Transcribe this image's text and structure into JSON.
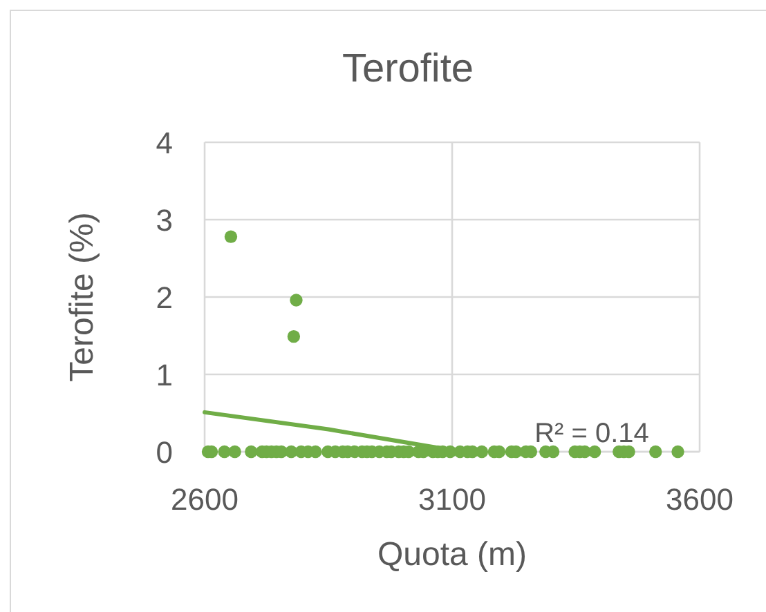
{
  "chart_data": {
    "type": "scatter",
    "title": "Terofite",
    "xlabel": "Quota (m)",
    "ylabel": "Terofite (%)",
    "xlim": [
      2600,
      3600
    ],
    "xticks": [
      2600,
      3100,
      3600
    ],
    "ylim": [
      0,
      4
    ],
    "yticks": [
      0,
      1,
      2,
      3,
      4
    ],
    "grid": true,
    "annotations": [
      "R² = 0.14"
    ],
    "series": [
      {
        "type": "line",
        "color": "#70ad47",
        "marker": "none",
        "line_style": "solid",
        "x": [
          2600,
          2850,
          3100
        ],
        "values": [
          0.51,
          0.29,
          0.02
        ]
      },
      {
        "color": "#70ad47",
        "marker": "circle",
        "x": [
          2607,
          2614,
          2640,
          2653,
          2661,
          2694,
          2716,
          2725,
          2735,
          2745,
          2755,
          2775,
          2780,
          2785,
          2795,
          2809,
          2824,
          2849,
          2864,
          2879,
          2889,
          2903,
          2918,
          2928,
          2938,
          2953,
          2968,
          2977,
          2992,
          3002,
          3012,
          3032,
          3042,
          3061,
          3071,
          3081,
          3096,
          3116,
          3131,
          3141,
          3160,
          3185,
          3195,
          3220,
          3229,
          3249,
          3259,
          3289,
          3304,
          3348,
          3358,
          3368,
          3388,
          3437,
          3447,
          3457,
          3511,
          3556
        ],
        "values": [
          0,
          0,
          0,
          2.78,
          0,
          0,
          0,
          0,
          0,
          0,
          0,
          0,
          1.49,
          1.96,
          0,
          0,
          0,
          0,
          0,
          0,
          0,
          0,
          0,
          0,
          0,
          0,
          0,
          0,
          0,
          0,
          0,
          0,
          0,
          0,
          0,
          0,
          0,
          0,
          0,
          0,
          0,
          0,
          0,
          0,
          0,
          0,
          0,
          0,
          0,
          0,
          0,
          0,
          0,
          0,
          0,
          0,
          0,
          0
        ]
      }
    ]
  }
}
